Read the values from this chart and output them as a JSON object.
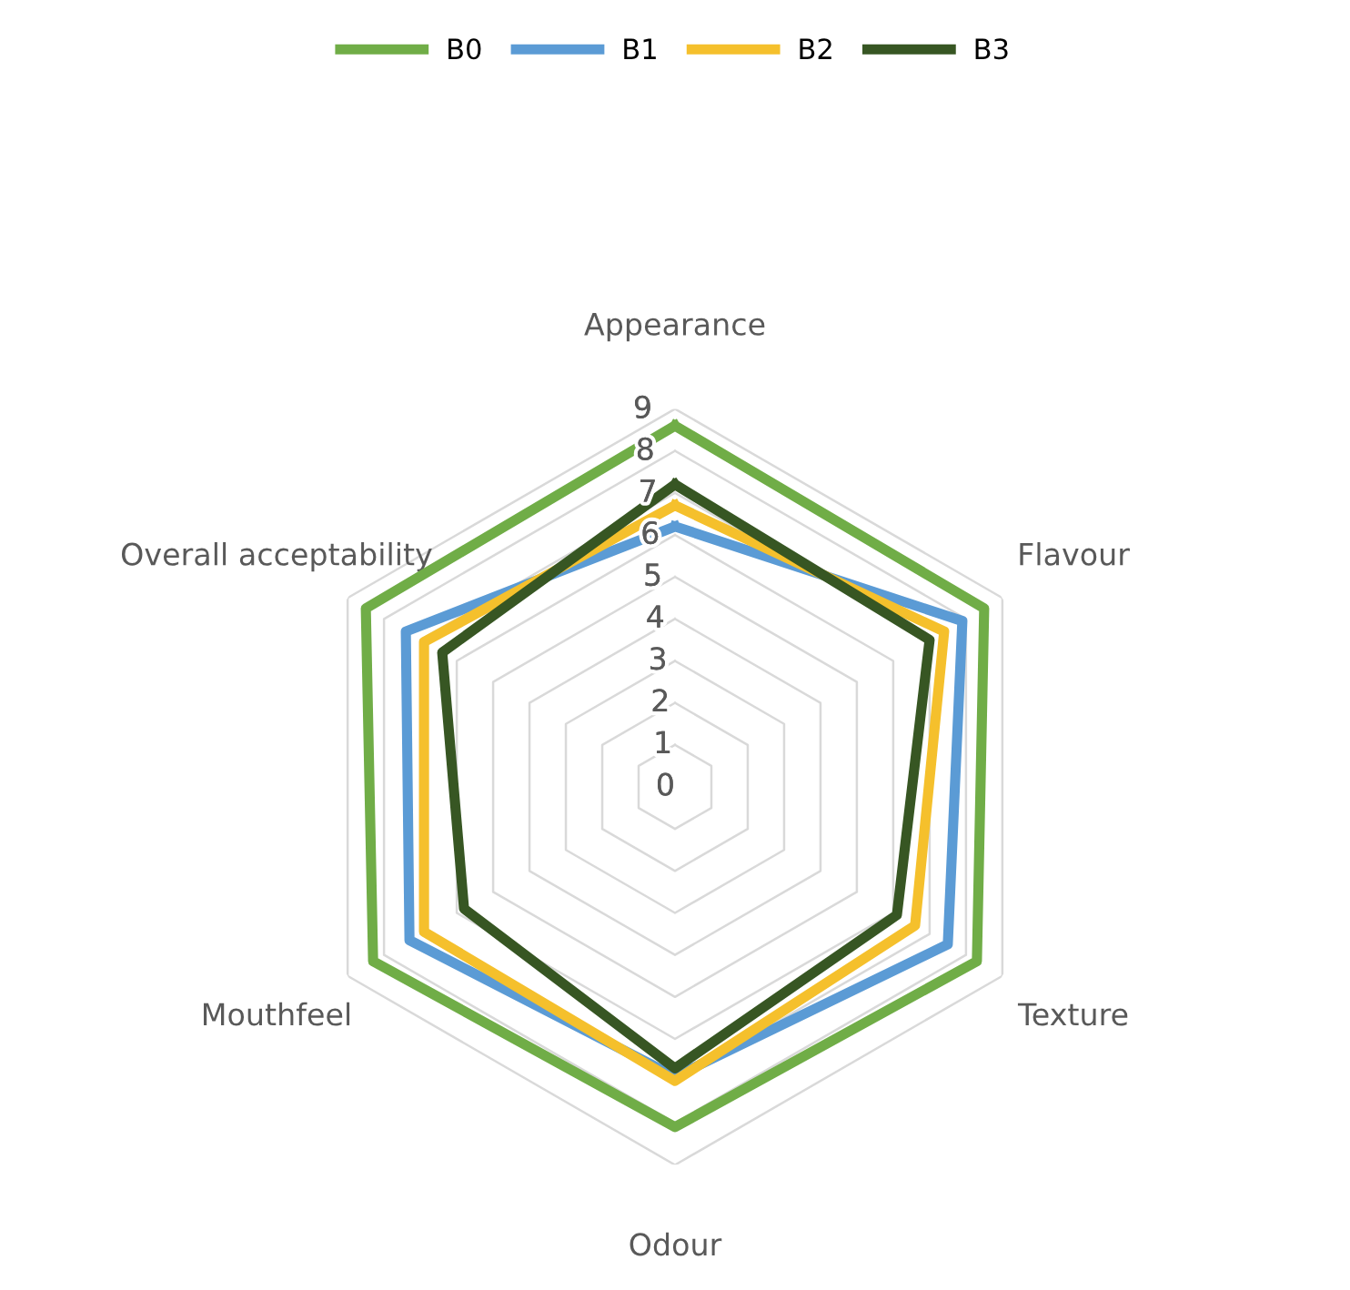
{
  "chart_data": {
    "type": "radar",
    "categories": [
      "Appearance",
      "Flavour",
      "Texture",
      "Odour",
      "Mouthfeel",
      "Overall acceptability"
    ],
    "series": [
      {
        "name": "B0",
        "color": "#70ad47",
        "values": [
          8.6,
          8.5,
          8.3,
          8.1,
          8.3,
          8.5
        ]
      },
      {
        "name": "B1",
        "color": "#5b9bd5",
        "values": [
          6.2,
          7.9,
          7.5,
          6.9,
          7.3,
          7.4
        ]
      },
      {
        "name": "B2",
        "color": "#f5c02c",
        "values": [
          6.7,
          7.4,
          6.6,
          7.0,
          6.9,
          6.9
        ]
      },
      {
        "name": "B3",
        "color": "#375623",
        "values": [
          7.2,
          7.0,
          6.1,
          6.7,
          5.8,
          6.4
        ]
      }
    ],
    "ylim": [
      0,
      9
    ],
    "yticks": [
      0,
      1,
      2,
      3,
      4,
      5,
      6,
      7,
      8,
      9
    ],
    "grid": true,
    "legend": "top",
    "marker": "none",
    "line_style": "solid"
  }
}
